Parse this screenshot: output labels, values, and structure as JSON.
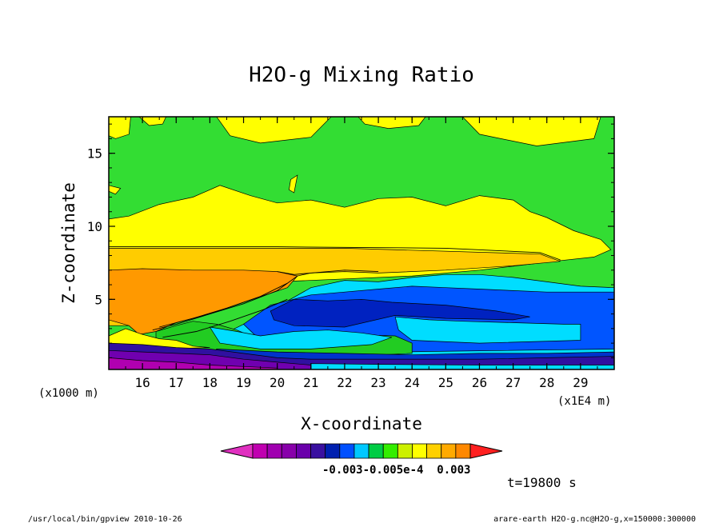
{
  "chart_data": {
    "type": "heatmap",
    "title": "H2O-g Mixing Ratio",
    "xlabel": "X-coordinate",
    "ylabel": "Z-coordinate",
    "x_unit": "(x1E4 m)",
    "y_unit": "(x1000 m)",
    "x_ticks": [
      16,
      17,
      18,
      19,
      20,
      21,
      22,
      23,
      24,
      25,
      26,
      27,
      28,
      29
    ],
    "y_ticks": [
      5,
      10,
      15
    ],
    "xlim": [
      15.0,
      30.0
    ],
    "ylim": [
      0.2,
      17.5
    ],
    "time_label": "t=19800 s",
    "colorbar": {
      "colors": [
        "#c000b0",
        "#a000b0",
        "#8800aa",
        "#6a00aa",
        "#3a10a0",
        "#0020b0",
        "#0050ff",
        "#00c8ff",
        "#00cc44",
        "#33ee00",
        "#ccf000",
        "#ffff00",
        "#ffd000",
        "#ffaa00",
        "#ff8800"
      ],
      "under_color": "#e030c0",
      "over_color": "#ff2020",
      "tick_labels": [
        "-0.003",
        "-0.005e-4",
        "0.003"
      ],
      "tick_label_display": "-0.003-0.005e-4  0.003"
    },
    "regions": [
      {
        "level": "green",
        "color": "#33dd33",
        "points": [
          [
            15.0,
            17.5
          ],
          [
            30.0,
            17.5
          ],
          [
            30.0,
            0.2
          ],
          [
            15.0,
            0.2
          ]
        ]
      },
      {
        "level": "yellow-top-1",
        "color": "#ffff00",
        "points": [
          [
            15.0,
            17.5
          ],
          [
            15.65,
            17.5
          ],
          [
            15.6,
            16.3
          ],
          [
            15.2,
            16.0
          ],
          [
            15.0,
            16.2
          ]
        ]
      },
      {
        "level": "yellow-top-2",
        "color": "#ffff00",
        "points": [
          [
            15.9,
            17.5
          ],
          [
            16.7,
            17.5
          ],
          [
            16.6,
            17.0
          ],
          [
            16.2,
            16.9
          ]
        ]
      },
      {
        "level": "yellow-top-3",
        "color": "#ffff00",
        "points": [
          [
            18.2,
            17.5
          ],
          [
            21.6,
            17.5
          ],
          [
            21.0,
            16.1
          ],
          [
            19.5,
            15.7
          ],
          [
            18.6,
            16.2
          ]
        ]
      },
      {
        "level": "yellow-top-4",
        "color": "#ffff00",
        "points": [
          [
            22.4,
            17.5
          ],
          [
            24.4,
            17.5
          ],
          [
            24.2,
            16.9
          ],
          [
            23.3,
            16.7
          ],
          [
            22.6,
            17.0
          ]
        ]
      },
      {
        "level": "yellow-top-5",
        "color": "#ffff00",
        "points": [
          [
            25.5,
            17.5
          ],
          [
            29.6,
            17.5
          ],
          [
            29.4,
            16.0
          ],
          [
            27.7,
            15.5
          ],
          [
            26.0,
            16.3
          ]
        ]
      },
      {
        "level": "yellow-small",
        "color": "#ffff00",
        "points": [
          [
            15.0,
            12.8
          ],
          [
            15.35,
            12.6
          ],
          [
            15.2,
            12.2
          ],
          [
            15.0,
            12.4
          ]
        ]
      },
      {
        "level": "yellow-small-2",
        "color": "#ffff00",
        "points": [
          [
            20.4,
            13.2
          ],
          [
            20.6,
            13.5
          ],
          [
            20.5,
            12.3
          ],
          [
            20.35,
            12.5
          ]
        ]
      },
      {
        "level": "yellow-band",
        "color": "#ffff00",
        "points": [
          [
            15.0,
            10.5
          ],
          [
            15.6,
            10.7
          ],
          [
            16.5,
            11.5
          ],
          [
            17.5,
            12.0
          ],
          [
            18.3,
            12.8
          ],
          [
            19.2,
            12.1
          ],
          [
            20.0,
            11.6
          ],
          [
            21.0,
            11.8
          ],
          [
            22.0,
            11.3
          ],
          [
            23.0,
            11.9
          ],
          [
            24.0,
            12.0
          ],
          [
            25.0,
            11.4
          ],
          [
            26.0,
            12.1
          ],
          [
            27.0,
            11.8
          ],
          [
            27.5,
            11.0
          ],
          [
            28.0,
            10.6
          ],
          [
            28.8,
            9.7
          ],
          [
            29.6,
            9.1
          ],
          [
            29.9,
            8.4
          ],
          [
            29.4,
            7.9
          ],
          [
            28.2,
            7.6
          ],
          [
            26.0,
            7.0
          ],
          [
            24.0,
            6.6
          ],
          [
            22.0,
            6.4
          ],
          [
            20.0,
            6.2
          ],
          [
            18.0,
            4.2
          ],
          [
            17.0,
            3.6
          ],
          [
            16.0,
            3.3
          ],
          [
            15.0,
            3.3
          ]
        ]
      },
      {
        "level": "orange-light",
        "color": "#ffcc00",
        "points": [
          [
            15.0,
            8.5
          ],
          [
            22.0,
            8.5
          ],
          [
            27.8,
            8.1
          ],
          [
            28.4,
            7.6
          ],
          [
            27.0,
            7.3
          ],
          [
            25.0,
            7.0
          ],
          [
            23.0,
            6.8
          ],
          [
            22.0,
            6.9
          ],
          [
            21.0,
            6.8
          ],
          [
            20.0,
            6.3
          ],
          [
            18.5,
            5.1
          ],
          [
            17.0,
            3.8
          ],
          [
            16.0,
            3.2
          ],
          [
            15.0,
            3.2
          ]
        ]
      },
      {
        "level": "orange",
        "color": "#ff9900",
        "points": [
          [
            15.0,
            7.0
          ],
          [
            16.0,
            7.1
          ],
          [
            17.5,
            7.0
          ],
          [
            19.0,
            7.0
          ],
          [
            20.0,
            6.9
          ],
          [
            20.6,
            6.6
          ],
          [
            20.3,
            5.8
          ],
          [
            19.0,
            4.8
          ],
          [
            18.0,
            4.0
          ],
          [
            17.0,
            3.4
          ],
          [
            16.4,
            2.8
          ],
          [
            15.9,
            2.6
          ],
          [
            15.6,
            3.2
          ],
          [
            15.0,
            3.6
          ]
        ]
      },
      {
        "level": "cyan",
        "color": "#00ddff",
        "points": [
          [
            20.0,
            4.5
          ],
          [
            21.0,
            5.8
          ],
          [
            22.0,
            6.3
          ],
          [
            23.0,
            6.2
          ],
          [
            24.0,
            6.5
          ],
          [
            25.0,
            6.7
          ],
          [
            26.0,
            6.7
          ],
          [
            27.0,
            6.5
          ],
          [
            28.0,
            6.2
          ],
          [
            29.0,
            5.9
          ],
          [
            30.0,
            5.8
          ],
          [
            30.0,
            1.0
          ],
          [
            18.2,
            1.0
          ],
          [
            17.8,
            1.5
          ],
          [
            18.3,
            2.5
          ],
          [
            19.0,
            3.3
          ]
        ]
      },
      {
        "level": "blue",
        "color": "#0055ff",
        "points": [
          [
            19.8,
            4.6
          ],
          [
            21.0,
            5.3
          ],
          [
            22.0,
            5.5
          ],
          [
            23.0,
            5.7
          ],
          [
            24.0,
            5.9
          ],
          [
            25.0,
            5.8
          ],
          [
            26.0,
            5.7
          ],
          [
            27.0,
            5.6
          ],
          [
            28.0,
            5.5
          ],
          [
            29.0,
            5.5
          ],
          [
            30.0,
            5.5
          ],
          [
            30.0,
            1.6
          ],
          [
            23.5,
            1.4
          ],
          [
            21.0,
            1.5
          ],
          [
            19.5,
            2.2
          ],
          [
            19.0,
            3.3
          ]
        ]
      },
      {
        "level": "cyan-inner",
        "color": "#00ddff",
        "points": [
          [
            23.5,
            3.8
          ],
          [
            24.5,
            3.6
          ],
          [
            25.5,
            3.5
          ],
          [
            27.0,
            3.4
          ],
          [
            28.5,
            3.3
          ],
          [
            29.0,
            3.3
          ],
          [
            29.0,
            2.2
          ],
          [
            26.0,
            2.0
          ],
          [
            24.0,
            2.2
          ],
          [
            23.6,
            2.9
          ]
        ]
      },
      {
        "level": "dark-blue",
        "color": "#0022c0",
        "points": [
          [
            19.8,
            4.2
          ],
          [
            20.5,
            5.0
          ],
          [
            21.5,
            4.9
          ],
          [
            22.5,
            5.0
          ],
          [
            23.4,
            4.8
          ],
          [
            25.0,
            4.6
          ],
          [
            26.5,
            4.2
          ],
          [
            27.5,
            3.8
          ],
          [
            27.0,
            3.6
          ],
          [
            25.0,
            3.7
          ],
          [
            23.5,
            3.9
          ],
          [
            22.0,
            3.1
          ],
          [
            20.5,
            3.2
          ],
          [
            19.9,
            3.6
          ]
        ]
      },
      {
        "level": "green-low",
        "color": "#22cc22",
        "points": [
          [
            16.4,
            2.8
          ],
          [
            17.0,
            3.2
          ],
          [
            17.5,
            3.5
          ],
          [
            18.2,
            3.3
          ],
          [
            18.8,
            2.9
          ],
          [
            19.5,
            2.2
          ],
          [
            21.0,
            2.5
          ],
          [
            22.0,
            2.6
          ],
          [
            23.5,
            2.5
          ],
          [
            24.0,
            2.0
          ],
          [
            24.0,
            1.3
          ],
          [
            22.0,
            1.1
          ],
          [
            20.0,
            1.0
          ],
          [
            18.0,
            1.1
          ],
          [
            16.4,
            1.6
          ]
        ]
      },
      {
        "level": "cyan-low",
        "color": "#00ddff",
        "points": [
          [
            18.0,
            3.1
          ],
          [
            18.8,
            2.8
          ],
          [
            19.5,
            2.5
          ],
          [
            20.5,
            2.8
          ],
          [
            21.5,
            2.9
          ],
          [
            22.5,
            2.7
          ],
          [
            23.4,
            2.4
          ],
          [
            22.8,
            1.9
          ],
          [
            21.0,
            1.6
          ],
          [
            19.5,
            1.6
          ],
          [
            18.3,
            2.0
          ]
        ]
      },
      {
        "level": "yellow-low",
        "color": "#ffff00",
        "points": [
          [
            15.0,
            2.5
          ],
          [
            15.5,
            3.0
          ],
          [
            16.0,
            2.6
          ],
          [
            16.5,
            2.3
          ],
          [
            17.0,
            2.2
          ],
          [
            17.5,
            1.8
          ],
          [
            18.0,
            1.7
          ],
          [
            16.5,
            1.6
          ],
          [
            15.0,
            1.6
          ]
        ]
      },
      {
        "level": "blue-low",
        "color": "#0033cc",
        "points": [
          [
            18.2,
            1.6
          ],
          [
            20.0,
            1.4
          ],
          [
            22.0,
            1.3
          ],
          [
            24.0,
            1.2
          ],
          [
            26.0,
            1.3
          ],
          [
            28.0,
            1.3
          ],
          [
            30.0,
            1.4
          ],
          [
            30.0,
            0.9
          ],
          [
            18.0,
            0.9
          ]
        ]
      },
      {
        "level": "indigo",
        "color": "#3010a0",
        "points": [
          [
            15.0,
            2.0
          ],
          [
            16.0,
            1.9
          ],
          [
            17.0,
            1.7
          ],
          [
            18.0,
            1.6
          ],
          [
            19.0,
            1.3
          ],
          [
            20.0,
            1.0
          ],
          [
            21.0,
            0.9
          ],
          [
            22.0,
            0.9
          ],
          [
            23.0,
            0.9
          ],
          [
            24.0,
            0.9
          ],
          [
            26.0,
            0.9
          ],
          [
            28.0,
            1.0
          ],
          [
            30.0,
            1.1
          ],
          [
            30.0,
            0.2
          ],
          [
            15.0,
            0.2
          ]
        ]
      },
      {
        "level": "violet",
        "color": "#7000b0",
        "points": [
          [
            15.0,
            1.5
          ],
          [
            16.0,
            1.4
          ],
          [
            17.0,
            1.3
          ],
          [
            18.0,
            1.2
          ],
          [
            19.0,
            0.9
          ],
          [
            20.0,
            0.7
          ],
          [
            21.0,
            0.5
          ],
          [
            22.0,
            0.5
          ],
          [
            23.0,
            0.4
          ],
          [
            24.0,
            0.4
          ],
          [
            24.0,
            0.2
          ],
          [
            15.0,
            0.2
          ]
        ]
      },
      {
        "level": "magenta",
        "color": "#b000b0",
        "points": [
          [
            15.0,
            1.0
          ],
          [
            16.0,
            0.8
          ],
          [
            17.0,
            0.7
          ],
          [
            18.0,
            0.5
          ],
          [
            19.0,
            0.4
          ],
          [
            20.0,
            0.3
          ],
          [
            20.0,
            0.2
          ],
          [
            15.0,
            0.2
          ]
        ]
      },
      {
        "level": "cyan-strip",
        "color": "#00ddff",
        "points": [
          [
            21.0,
            0.6
          ],
          [
            23.0,
            0.55
          ],
          [
            26.0,
            0.5
          ],
          [
            30.0,
            0.5
          ],
          [
            30.0,
            0.2
          ],
          [
            21.0,
            0.2
          ]
        ]
      }
    ],
    "contour_lines": [
      [
        [
          15.0,
          8.6
        ],
        [
          20.0,
          8.6
        ],
        [
          25.0,
          8.5
        ],
        [
          27.8,
          8.2
        ],
        [
          28.4,
          7.7
        ]
      ],
      [
        [
          20.0,
          6.9
        ],
        [
          20.5,
          6.7
        ],
        [
          21.0,
          6.8
        ],
        [
          22.0,
          7.0
        ],
        [
          23.0,
          6.9
        ]
      ],
      [
        [
          16.3,
          2.9
        ],
        [
          17.0,
          3.3
        ],
        [
          18.0,
          4.0
        ],
        [
          19.0,
          4.7
        ],
        [
          20.0,
          5.6
        ],
        [
          20.6,
          6.6
        ]
      ],
      [
        [
          16.5,
          3.1
        ],
        [
          17.5,
          3.7
        ],
        [
          18.5,
          4.4
        ],
        [
          19.5,
          5.2
        ],
        [
          20.3,
          6.1
        ]
      ],
      [
        [
          16.6,
          2.4
        ],
        [
          17.6,
          2.8
        ],
        [
          18.6,
          3.5
        ],
        [
          19.6,
          4.3
        ],
        [
          20.3,
          5.0
        ]
      ]
    ],
    "footer": {
      "left": "/usr/local/bin/gpview  2010-10-26",
      "right": "arare-earth_H2O-g.nc@H2O-g,x=150000:300000"
    }
  }
}
